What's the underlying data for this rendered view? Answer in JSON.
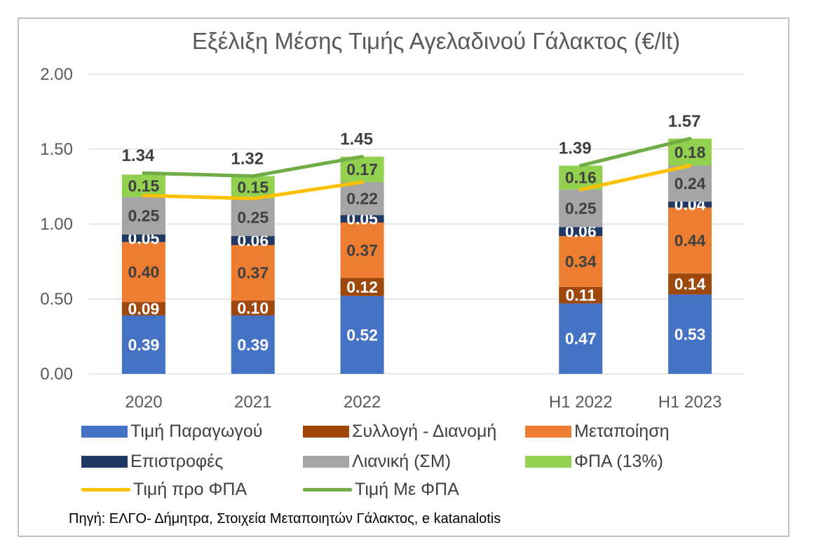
{
  "chart_data": {
    "type": "bar",
    "title": "Εξέλιξη Μέσης Τιμής Αγελαδινού Γάλακτος (€/lt)",
    "categories": [
      "2020",
      "2021",
      "2022",
      "",
      "H1 2022",
      "H1 2023"
    ],
    "ylim": [
      0,
      2
    ],
    "yticks": [
      "0.00",
      "0.50",
      "1.00",
      "1.50",
      "2.00"
    ],
    "grid": true,
    "legend_position": "bottom",
    "stacked_series": [
      {
        "name": "Τιμή Παραγωγού",
        "color": "#4472c4",
        "label_color": "#ffffff",
        "values": [
          0.39,
          0.39,
          0.52,
          null,
          0.47,
          0.53
        ],
        "labels": [
          "0.39",
          "0.39",
          "0.52",
          "",
          "0.47",
          "0.53"
        ]
      },
      {
        "name": "Συλλογή - Διανομή",
        "color": "#9e480e",
        "label_color": "#ffffff",
        "values": [
          0.09,
          0.1,
          0.12,
          null,
          0.11,
          0.14
        ],
        "labels": [
          "0.09",
          "0.10",
          "0.12",
          "",
          "0.11",
          "0.14"
        ]
      },
      {
        "name": "Μεταποίηση",
        "color": "#ed7d31",
        "label_color": "#404040",
        "values": [
          0.4,
          0.37,
          0.37,
          null,
          0.34,
          0.44
        ],
        "labels": [
          "0.40",
          "0.37",
          "0.37",
          "",
          "0.34",
          "0.44"
        ]
      },
      {
        "name": "Επιστροφές",
        "color": "#203864",
        "label_color": "#ffffff",
        "values": [
          0.05,
          0.06,
          0.05,
          null,
          0.06,
          0.04
        ],
        "labels": [
          "0.05",
          "0.06",
          "0.05",
          "",
          "0.06",
          "0.04"
        ]
      },
      {
        "name": "Λιανική (ΣΜ)",
        "color": "#a5a5a5",
        "label_color": "#404040",
        "values": [
          0.25,
          0.25,
          0.22,
          null,
          0.25,
          0.24
        ],
        "labels": [
          "0.25",
          "0.25",
          "0.22",
          "",
          "0.25",
          "0.24"
        ]
      },
      {
        "name": "ΦΠΑ (13%)",
        "color": "#92d050",
        "label_color": "#404040",
        "values": [
          0.15,
          0.15,
          0.17,
          null,
          0.16,
          0.18
        ],
        "labels": [
          "0.15",
          "0.15",
          "0.17",
          "",
          "0.16",
          "0.18"
        ]
      }
    ],
    "line_series": [
      {
        "name": "Τιμή προ ΦΠΑ",
        "color": "#ffc000",
        "values": [
          1.19,
          1.17,
          1.28,
          null,
          1.23,
          1.39
        ],
        "labels": [
          "",
          "",
          "",
          "",
          "",
          ""
        ]
      },
      {
        "name": "Τιμή Με ΦΠΑ",
        "color": "#70ad47",
        "values": [
          1.34,
          1.32,
          1.45,
          null,
          1.39,
          1.57
        ],
        "labels": [
          "1.34",
          "1.32",
          "1.45",
          "",
          "1.39",
          "1.57"
        ]
      }
    ]
  },
  "source_note": "Πηγή: ΕΛΓΟ- Δήμητρα, Στοιχεία Μεταποιητών Γάλακτος, e katanalotis"
}
